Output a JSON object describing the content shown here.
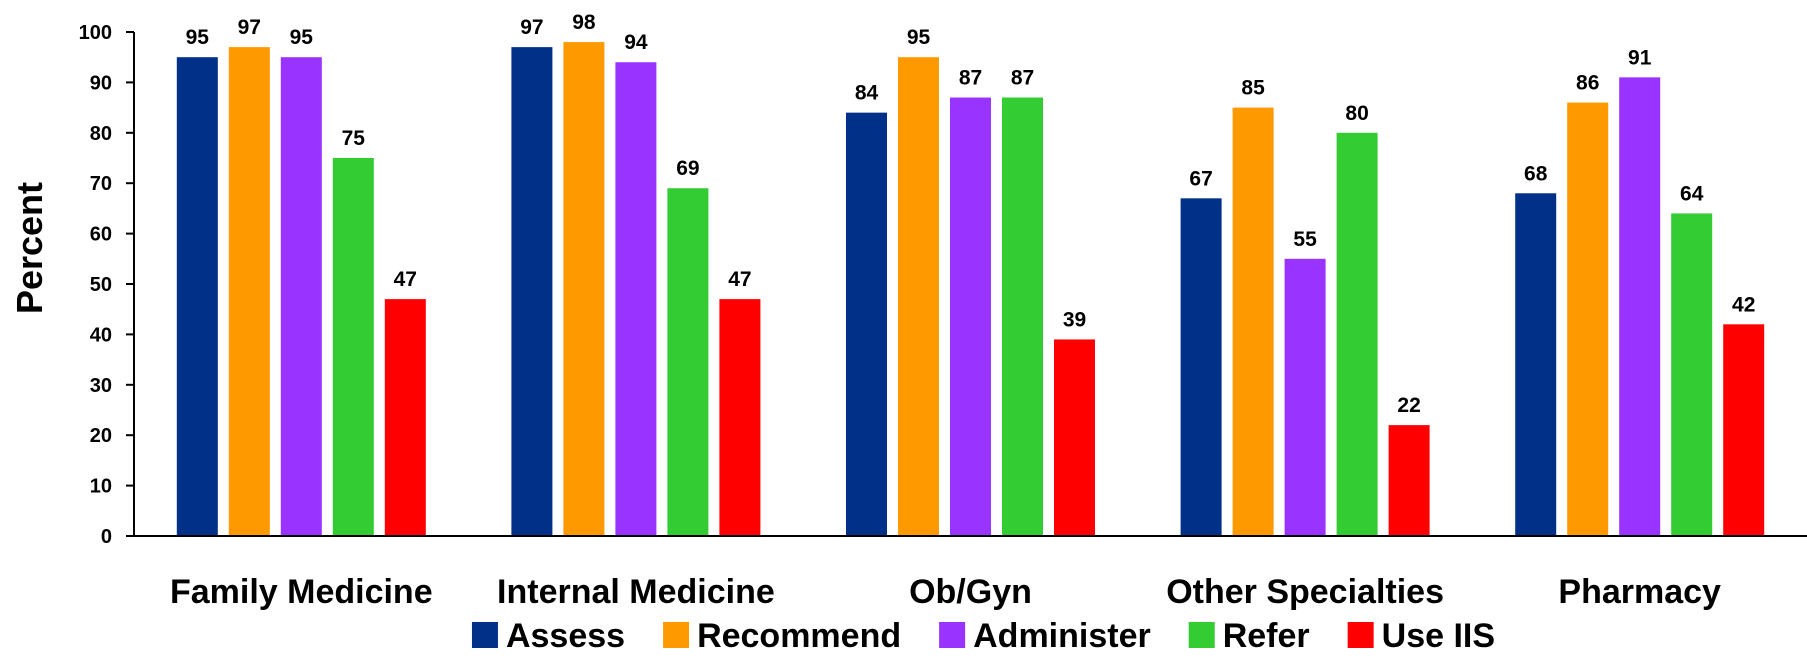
{
  "chart_data": {
    "type": "bar",
    "title": "",
    "xlabel": "",
    "ylabel": "Percent",
    "ylim": [
      0,
      100
    ],
    "yticks": [
      0,
      10,
      20,
      30,
      40,
      50,
      60,
      70,
      80,
      90,
      100
    ],
    "grid": false,
    "legend_position": "bottom",
    "categories": [
      "Family Medicine",
      "Internal Medicine",
      "Ob/Gyn",
      "Other Specialties",
      "Pharmacy"
    ],
    "series": [
      {
        "name": "Assess",
        "color": "#003087",
        "values": [
          95,
          97,
          84,
          67,
          68
        ]
      },
      {
        "name": "Recommend",
        "color": "#FF9900",
        "values": [
          97,
          98,
          95,
          85,
          86
        ]
      },
      {
        "name": "Administer",
        "color": "#9933FF",
        "values": [
          95,
          94,
          87,
          55,
          91
        ]
      },
      {
        "name": "Refer",
        "color": "#33CC33",
        "values": [
          75,
          69,
          87,
          80,
          64
        ]
      },
      {
        "name": "Use IIS",
        "color": "#FF0000",
        "values": [
          47,
          47,
          39,
          22,
          42
        ]
      }
    ]
  }
}
